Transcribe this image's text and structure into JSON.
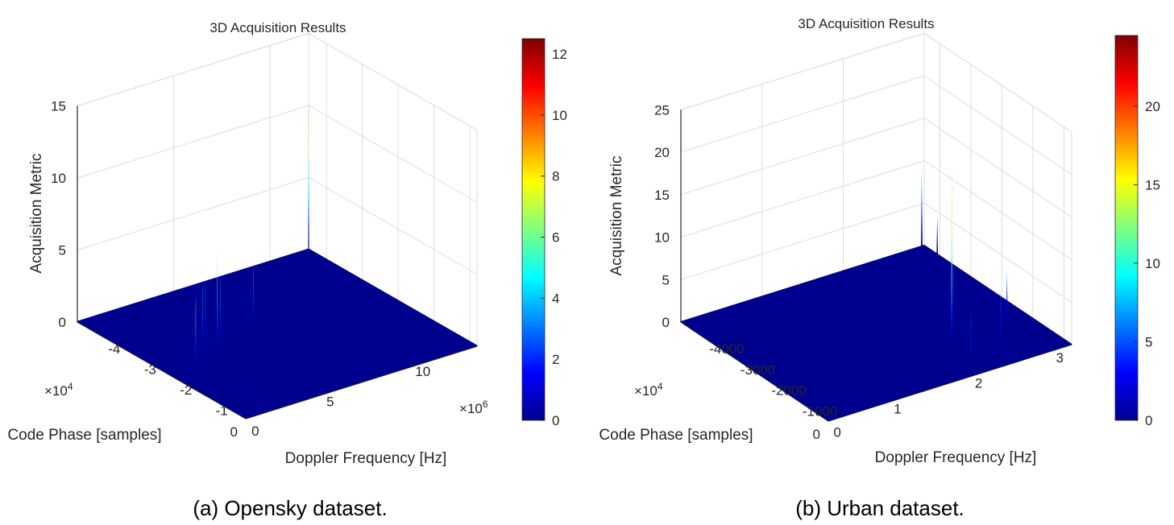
{
  "figure": {
    "captions": [
      "(a) Opensky dataset.",
      "(b) Urban dataset."
    ]
  },
  "chart_data": [
    {
      "type": "surface",
      "title": "3D Acquisition Results",
      "xlabel": "Doppler Frequency [Hz]",
      "ylabel": "Code Phase [samples]",
      "zlabel": "Acquisition Metric",
      "x_multiplier": "×10^6",
      "y_multiplier": "×10^4",
      "xlim": [
        -4.5,
        0.2
      ],
      "ylim": [
        0,
        12
      ],
      "zlim": [
        0,
        15
      ],
      "x_ticks": [
        {
          "v": -4,
          "t": "-4"
        },
        {
          "v": -3,
          "t": "-3"
        },
        {
          "v": -2,
          "t": "-2"
        },
        {
          "v": -1,
          "t": "-1"
        },
        {
          "v": 0,
          "t": "0"
        }
      ],
      "y_ticks": [
        {
          "v": 0,
          "t": "0"
        },
        {
          "v": 5,
          "t": "5"
        },
        {
          "v": 10,
          "t": "10"
        }
      ],
      "z_ticks": [
        {
          "v": 0,
          "t": "0"
        },
        {
          "v": 5,
          "t": "5"
        },
        {
          "v": 10,
          "t": "10"
        },
        {
          "v": 15,
          "t": "15"
        }
      ],
      "colorbar": {
        "colormap": "jet",
        "range": [
          0,
          12.5
        ],
        "ticks": [
          0,
          2,
          4,
          6,
          8,
          10,
          12
        ]
      },
      "grid": true,
      "peaks": [
        {
          "x": -4.5,
          "y": 12.0,
          "z": 10.5
        },
        {
          "x": -2.55,
          "y": 5.5,
          "z": 5.0
        },
        {
          "x": -2.7,
          "y": 3.3,
          "z": 4.4
        },
        {
          "x": -2.45,
          "y": 3.6,
          "z": 4.9
        },
        {
          "x": -2.35,
          "y": 2.5,
          "z": 5.1
        },
        {
          "x": -2.15,
          "y": 2.9,
          "z": 7.6
        },
        {
          "x": -2.0,
          "y": 1.5,
          "z": 5.0
        },
        {
          "x": -1.85,
          "y": 1.2,
          "z": 5.2
        },
        {
          "x": 0.2,
          "y": 0.5,
          "z": 2.0
        }
      ]
    },
    {
      "type": "surface",
      "title": "3D Acquisition Results",
      "xlabel": "Doppler Frequency [Hz]",
      "ylabel": "Code Phase [samples]",
      "zlabel": "Acquisition Metric",
      "y_multiplier": "×10^4",
      "xlim": [
        -4500,
        250
      ],
      "ylim": [
        0,
        3
      ],
      "zlim": [
        0,
        25
      ],
      "x_ticks": [
        {
          "v": -4000,
          "t": "-4000"
        },
        {
          "v": -3000,
          "t": "-3000"
        },
        {
          "v": -2000,
          "t": "-2000"
        },
        {
          "v": -1000,
          "t": "-1000"
        },
        {
          "v": 0,
          "t": "0"
        }
      ],
      "y_ticks": [
        {
          "v": 0,
          "t": "0"
        },
        {
          "v": 1,
          "t": "1"
        },
        {
          "v": 2,
          "t": "2"
        },
        {
          "v": 3,
          "t": "3"
        }
      ],
      "z_ticks": [
        {
          "v": 0,
          "t": "0"
        },
        {
          "v": 5,
          "t": "5"
        },
        {
          "v": 10,
          "t": "10"
        },
        {
          "v": 15,
          "t": "15"
        },
        {
          "v": 20,
          "t": "20"
        },
        {
          "v": 25,
          "t": "25"
        }
      ],
      "colorbar": {
        "colormap": "jet",
        "range": [
          0,
          24.5
        ],
        "ticks": [
          0,
          5,
          10,
          15,
          20
        ]
      },
      "grid": true,
      "peaks": [
        {
          "x": -4450,
          "y": 2.95,
          "z": 10.0
        },
        {
          "x": -3950,
          "y": 2.95,
          "z": 5.0
        },
        {
          "x": -1050,
          "y": 2.7,
          "z": 6.5
        },
        {
          "x": -1000,
          "y": 2.0,
          "z": 20.5
        },
        {
          "x": -600,
          "y": 2.45,
          "z": 6.0
        },
        {
          "x": -250,
          "y": 1.95,
          "z": 6.0
        },
        {
          "x": 100,
          "y": 2.2,
          "z": 2.2
        }
      ]
    }
  ]
}
